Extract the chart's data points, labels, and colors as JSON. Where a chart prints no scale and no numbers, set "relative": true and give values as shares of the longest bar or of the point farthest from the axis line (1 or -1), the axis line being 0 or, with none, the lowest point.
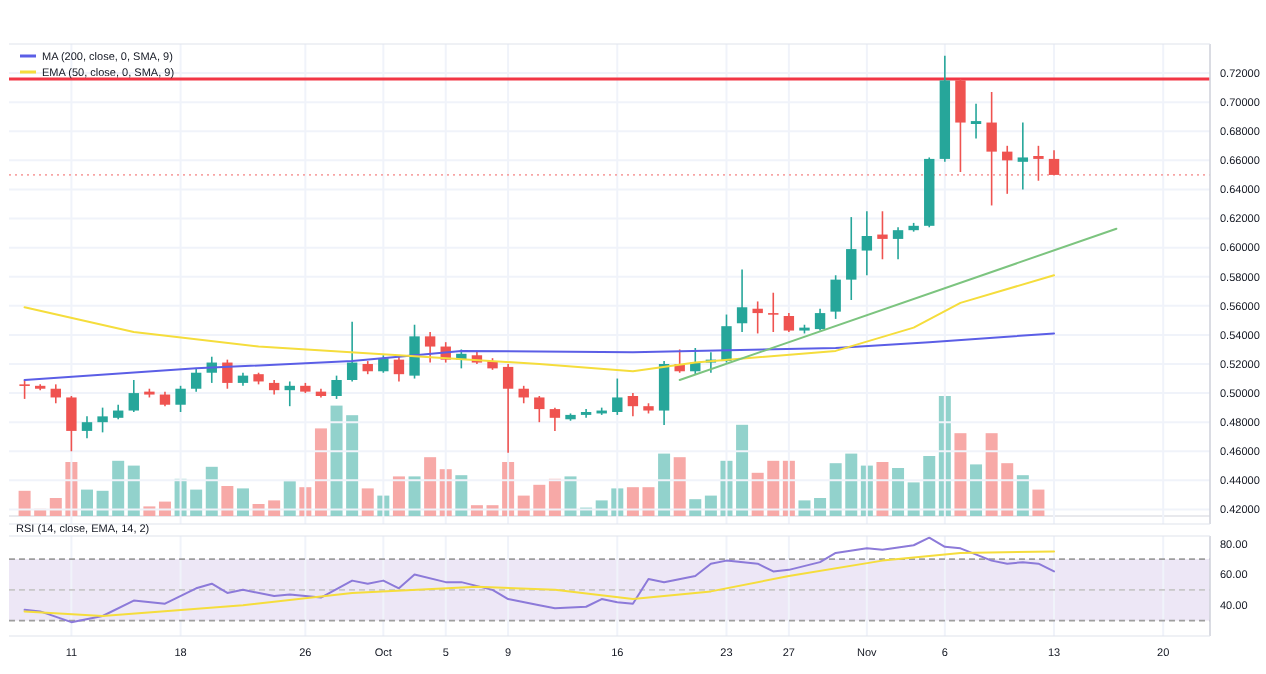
{
  "chart_data": [
    {
      "type": "candlestick",
      "tick_labels": "y",
      "grid": true,
      "legend": "top left",
      "xlim": [
        "--09-07",
        "--11-23"
      ],
      "ylim": [
        0.41,
        0.74
      ],
      "xticks": [
        {
          "value": "--09-11",
          "label": null
        },
        {
          "value": "--09-18",
          "label": null
        },
        {
          "value": "--09-26",
          "label": null
        },
        {
          "value": "--10-01",
          "label": null
        },
        {
          "value": "--10-05",
          "label": null
        },
        {
          "value": "--10-09",
          "label": null
        },
        {
          "value": "--10-16",
          "label": null
        },
        {
          "value": "--10-23",
          "label": null
        },
        {
          "value": "--10-27",
          "label": null
        },
        {
          "value": "--11-01",
          "label": null
        },
        {
          "value": "--11-06",
          "label": null
        },
        {
          "value": "--11-13",
          "label": null
        },
        {
          "value": "--11-20",
          "label": null
        }
      ],
      "yticks": [
        {
          "value": 0.42,
          "label": "0.42000"
        },
        {
          "value": 0.44,
          "label": "0.44000"
        },
        {
          "value": 0.46,
          "label": "0.46000"
        },
        {
          "value": 0.48,
          "label": "0.48000"
        },
        {
          "value": 0.5,
          "label": "0.50000"
        },
        {
          "value": 0.52,
          "label": "0.52000"
        },
        {
          "value": 0.54,
          "label": "0.54000"
        },
        {
          "value": 0.56,
          "label": "0.56000"
        },
        {
          "value": 0.58,
          "label": "0.58000"
        },
        {
          "value": 0.6,
          "label": "0.60000"
        },
        {
          "value": 0.62,
          "label": "0.62000"
        },
        {
          "value": 0.64,
          "label": "0.64000"
        },
        {
          "value": 0.66,
          "label": "0.66000"
        },
        {
          "value": 0.68,
          "label": "0.68000"
        },
        {
          "value": 0.7,
          "label": "0.70000"
        },
        {
          "value": 0.72,
          "label": "0.72000"
        }
      ],
      "x": [
        "--09-08",
        "--09-09",
        "--09-10",
        "--09-11",
        "--09-12",
        "--09-13",
        "--09-14",
        "--09-15",
        "--09-16",
        "--09-17",
        "--09-18",
        "--09-19",
        "--09-20",
        "--09-21",
        "--09-22",
        "--09-23",
        "--09-24",
        "--09-25",
        "--09-26",
        "--09-27",
        "--09-28",
        "--09-29",
        "--09-30",
        "--10-01",
        "--10-02",
        "--10-03",
        "--10-04",
        "--10-05",
        "--10-06",
        "--10-07",
        "--10-08",
        "--10-09",
        "--10-10",
        "--10-11",
        "--10-12",
        "--10-13",
        "--10-14",
        "--10-15",
        "--10-16",
        "--10-17",
        "--10-18",
        "--10-19",
        "--10-20",
        "--10-21",
        "--10-22",
        "--10-23",
        "--10-24",
        "--10-25",
        "--10-26",
        "--10-27",
        "--10-28",
        "--10-29",
        "--10-30",
        "--10-31",
        "--11-01",
        "--11-02",
        "--11-03",
        "--11-04",
        "--11-05",
        "--11-06",
        "--11-07",
        "--11-08",
        "--11-09",
        "--11-10",
        "--11-11",
        "--11-12",
        "--11-13"
      ],
      "ohlc": [
        [
          0.506,
          0.509,
          0.496,
          0.505
        ],
        [
          0.505,
          0.506,
          0.502,
          0.503
        ],
        [
          0.503,
          0.506,
          0.493,
          0.497
        ],
        [
          0.497,
          0.498,
          0.46,
          0.474
        ],
        [
          0.474,
          0.484,
          0.469,
          0.48
        ],
        [
          0.48,
          0.49,
          0.473,
          0.484
        ],
        [
          0.483,
          0.492,
          0.482,
          0.488
        ],
        [
          0.488,
          0.509,
          0.487,
          0.5
        ],
        [
          0.501,
          0.503,
          0.497,
          0.499
        ],
        [
          0.499,
          0.501,
          0.491,
          0.492
        ],
        [
          0.492,
          0.505,
          0.487,
          0.503
        ],
        [
          0.503,
          0.517,
          0.501,
          0.514
        ],
        [
          0.514,
          0.525,
          0.507,
          0.521
        ],
        [
          0.521,
          0.523,
          0.503,
          0.507
        ],
        [
          0.507,
          0.514,
          0.505,
          0.512
        ],
        [
          0.513,
          0.514,
          0.506,
          0.508
        ],
        [
          0.507,
          0.509,
          0.499,
          0.502
        ],
        [
          0.502,
          0.508,
          0.491,
          0.505
        ],
        [
          0.505,
          0.507,
          0.5,
          0.501
        ],
        [
          0.501,
          0.503,
          0.497,
          0.498
        ],
        [
          0.498,
          0.512,
          0.496,
          0.509
        ],
        [
          0.509,
          0.549,
          0.508,
          0.521
        ],
        [
          0.52,
          0.522,
          0.513,
          0.515
        ],
        [
          0.515,
          0.526,
          0.514,
          0.524
        ],
        [
          0.523,
          0.526,
          0.508,
          0.513
        ],
        [
          0.512,
          0.547,
          0.51,
          0.539
        ],
        [
          0.539,
          0.542,
          0.521,
          0.532
        ],
        [
          0.532,
          0.535,
          0.521,
          0.523
        ],
        [
          0.523,
          0.53,
          0.517,
          0.527
        ],
        [
          0.526,
          0.529,
          0.52,
          0.521
        ],
        [
          0.522,
          0.524,
          0.516,
          0.517
        ],
        [
          0.518,
          0.52,
          0.459,
          0.503
        ],
        [
          0.503,
          0.505,
          0.493,
          0.497
        ],
        [
          0.497,
          0.498,
          0.48,
          0.489
        ],
        [
          0.489,
          0.49,
          0.474,
          0.483
        ],
        [
          0.482,
          0.486,
          0.481,
          0.485
        ],
        [
          0.485,
          0.489,
          0.483,
          0.487
        ],
        [
          0.486,
          0.49,
          0.485,
          0.488
        ],
        [
          0.487,
          0.51,
          0.485,
          0.497
        ],
        [
          0.498,
          0.5,
          0.484,
          0.491
        ],
        [
          0.491,
          0.493,
          0.486,
          0.488
        ],
        [
          0.488,
          0.522,
          0.478,
          0.52
        ],
        [
          0.52,
          0.53,
          0.514,
          0.515
        ],
        [
          0.515,
          0.531,
          0.513,
          0.521
        ],
        [
          0.521,
          0.528,
          0.514,
          0.523
        ],
        [
          0.522,
          0.554,
          0.521,
          0.546
        ],
        [
          0.548,
          0.585,
          0.542,
          0.559
        ],
        [
          0.558,
          0.563,
          0.541,
          0.555
        ],
        [
          0.555,
          0.569,
          0.542,
          0.554
        ],
        [
          0.553,
          0.555,
          0.542,
          0.543
        ],
        [
          0.543,
          0.547,
          0.541,
          0.545
        ],
        [
          0.544,
          0.558,
          0.543,
          0.555
        ],
        [
          0.556,
          0.581,
          0.551,
          0.578
        ],
        [
          0.578,
          0.621,
          0.564,
          0.599
        ],
        [
          0.598,
          0.625,
          0.581,
          0.608
        ],
        [
          0.609,
          0.625,
          0.592,
          0.606
        ],
        [
          0.606,
          0.614,
          0.592,
          0.612
        ],
        [
          0.612,
          0.617,
          0.611,
          0.615
        ],
        [
          0.615,
          0.662,
          0.614,
          0.661
        ],
        [
          0.661,
          0.732,
          0.659,
          0.715
        ],
        [
          0.715,
          0.716,
          0.652,
          0.686
        ],
        [
          0.685,
          0.699,
          0.675,
          0.687
        ],
        [
          0.686,
          0.707,
          0.629,
          0.666
        ],
        [
          0.666,
          0.67,
          0.637,
          0.66
        ],
        [
          0.659,
          0.686,
          0.64,
          0.662
        ],
        [
          0.663,
          0.67,
          0.646,
          0.661
        ],
        [
          0.661,
          0.667,
          0.65,
          0.65
        ]
      ],
      "colors": [
        "#ef5350",
        "#ef5350",
        "#ef5350",
        "#ef5350",
        "#26a69a",
        "#26a69a",
        "#26a69a",
        "#26a69a",
        "#ef5350",
        "#ef5350",
        "#26a69a",
        "#26a69a",
        "#26a69a",
        "#ef5350",
        "#26a69a",
        "#ef5350",
        "#ef5350",
        "#26a69a",
        "#ef5350",
        "#ef5350",
        "#26a69a",
        "#26a69a",
        "#ef5350",
        "#26a69a",
        "#ef5350",
        "#26a69a",
        "#ef5350",
        "#ef5350",
        "#26a69a",
        "#ef5350",
        "#ef5350",
        "#ef5350",
        "#ef5350",
        "#ef5350",
        "#ef5350",
        "#26a69a",
        "#26a69a",
        "#26a69a",
        "#26a69a",
        "#ef5350",
        "#ef5350",
        "#26a69a",
        "#ef5350",
        "#26a69a",
        "#26a69a",
        "#26a69a",
        "#26a69a",
        "#ef5350",
        "#ef5350",
        "#ef5350",
        "#26a69a",
        "#26a69a",
        "#26a69a",
        "#26a69a",
        "#26a69a",
        "#ef5350",
        "#26a69a",
        "#26a69a",
        "#26a69a",
        "#26a69a",
        "#ef5350",
        "#26a69a",
        "#ef5350",
        "#ef5350",
        "#26a69a",
        "#ef5350",
        "#ef5350"
      ],
      "ref_lines": [
        {
          "axis": "y",
          "value": 0.716,
          "color": "#f23645",
          "line_style": "solid"
        },
        {
          "axis": "y",
          "value": 0.65,
          "color": "#f7a5a5",
          "line_style": "dotted"
        }
      ],
      "series": [
        {
          "type": "line",
          "name": "MA (200, close, 0, SMA, 9)",
          "color": "#5b5ee6",
          "x": [
            "--09-08",
            "--09-19",
            "--09-29",
            "--10-06",
            "--10-17",
            "--10-30",
            "--11-05",
            "--11-13"
          ],
          "values": [
            0.509,
            0.517,
            0.522,
            0.529,
            0.528,
            0.531,
            0.535,
            0.541
          ]
        },
        {
          "type": "line",
          "name": "EMA (50, close, 0, SMA, 9)",
          "color": "#f5dd3c",
          "x": [
            "--09-08",
            "--09-15",
            "--09-23",
            "--10-02",
            "--10-11",
            "--10-17",
            "--10-21",
            "--10-30",
            "--11-04",
            "--11-07",
            "--11-13"
          ],
          "values": [
            0.559,
            0.542,
            0.532,
            0.526,
            0.52,
            0.515,
            0.521,
            0.529,
            0.545,
            0.562,
            0.581
          ]
        },
        {
          "type": "line",
          "color": "#7cc47f",
          "x": [
            "--10-20",
            "--11-17"
          ],
          "values": [
            0.509,
            0.613
          ]
        }
      ]
    },
    {
      "type": "bar",
      "relative": true,
      "tick_labels": false,
      "xlim": [
        "--09-07",
        "--11-23"
      ],
      "x": [
        "--09-08",
        "--09-09",
        "--09-10",
        "--09-11",
        "--09-12",
        "--09-13",
        "--09-14",
        "--09-15",
        "--09-16",
        "--09-17",
        "--09-18",
        "--09-19",
        "--09-20",
        "--09-21",
        "--09-22",
        "--09-23",
        "--09-24",
        "--09-25",
        "--09-26",
        "--09-27",
        "--09-28",
        "--09-29",
        "--09-30",
        "--10-01",
        "--10-02",
        "--10-03",
        "--10-04",
        "--10-05",
        "--10-06",
        "--10-07",
        "--10-08",
        "--10-09",
        "--10-10",
        "--10-11",
        "--10-12",
        "--10-13",
        "--10-14",
        "--10-15",
        "--10-16",
        "--10-17",
        "--10-18",
        "--10-19",
        "--10-20",
        "--10-21",
        "--10-22",
        "--10-23",
        "--10-24",
        "--10-25",
        "--10-26",
        "--10-27",
        "--10-28",
        "--10-29",
        "--10-30",
        "--10-31",
        "--11-01",
        "--11-02",
        "--11-03",
        "--11-04",
        "--11-05",
        "--11-06",
        "--11-07",
        "--11-08",
        "--11-09",
        "--11-10",
        "--11-11",
        "--11-12"
      ],
      "values": [
        0.21,
        0.06,
        0.15,
        0.45,
        0.22,
        0.21,
        0.46,
        0.42,
        0.08,
        0.12,
        0.31,
        0.22,
        0.41,
        0.25,
        0.23,
        0.1,
        0.13,
        0.29,
        0.24,
        0.73,
        0.92,
        0.84,
        0.23,
        0.17,
        0.33,
        0.33,
        0.49,
        0.39,
        0.34,
        0.09,
        0.09,
        0.45,
        0.17,
        0.26,
        0.31,
        0.33,
        0.07,
        0.13,
        0.23,
        0.24,
        0.24,
        0.52,
        0.49,
        0.14,
        0.17,
        0.46,
        0.76,
        0.36,
        0.46,
        0.46,
        0.13,
        0.15,
        0.44,
        0.52,
        0.42,
        0.45,
        0.4,
        0.28,
        0.5,
        1,
        0.69,
        0.43,
        0.69,
        0.44,
        0.34,
        0.22
      ],
      "colors": [
        "#f7a9a7",
        "#f7a9a7",
        "#f7a9a7",
        "#f7a9a7",
        "#92d2cc",
        "#92d2cc",
        "#92d2cc",
        "#92d2cc",
        "#f7a9a7",
        "#f7a9a7",
        "#92d2cc",
        "#92d2cc",
        "#92d2cc",
        "#f7a9a7",
        "#92d2cc",
        "#f7a9a7",
        "#f7a9a7",
        "#92d2cc",
        "#f7a9a7",
        "#f7a9a7",
        "#92d2cc",
        "#92d2cc",
        "#f7a9a7",
        "#92d2cc",
        "#f7a9a7",
        "#92d2cc",
        "#f7a9a7",
        "#f7a9a7",
        "#92d2cc",
        "#f7a9a7",
        "#f7a9a7",
        "#f7a9a7",
        "#f7a9a7",
        "#f7a9a7",
        "#f7a9a7",
        "#92d2cc",
        "#92d2cc",
        "#92d2cc",
        "#92d2cc",
        "#f7a9a7",
        "#f7a9a7",
        "#92d2cc",
        "#f7a9a7",
        "#92d2cc",
        "#92d2cc",
        "#92d2cc",
        "#92d2cc",
        "#f7a9a7",
        "#f7a9a7",
        "#f7a9a7",
        "#92d2cc",
        "#92d2cc",
        "#92d2cc",
        "#92d2cc",
        "#92d2cc",
        "#f7a9a7",
        "#92d2cc",
        "#92d2cc",
        "#92d2cc",
        "#92d2cc",
        "#f7a9a7",
        "#92d2cc",
        "#f7a9a7",
        "#f7a9a7",
        "#92d2cc",
        "#f7a9a7"
      ]
    },
    {
      "type": "line",
      "title": "RSI (14, close, EMA, 14, 2)",
      "grid": "x",
      "xlim": [
        "--09-07",
        "--11-23"
      ],
      "ylim": [
        20,
        85
      ],
      "xticks": [
        {
          "value": "--09-11",
          "label": "11"
        },
        {
          "value": "--09-18",
          "label": "18"
        },
        {
          "value": "--09-26",
          "label": "26"
        },
        {
          "value": "--10-01",
          "label": "Oct"
        },
        {
          "value": "--10-05",
          "label": "5"
        },
        {
          "value": "--10-09",
          "label": "9"
        },
        {
          "value": "--10-16",
          "label": "16"
        },
        {
          "value": "--10-23",
          "label": "23"
        },
        {
          "value": "--10-27",
          "label": "27"
        },
        {
          "value": "--11-01",
          "label": "Nov"
        },
        {
          "value": "--11-06",
          "label": "6"
        },
        {
          "value": "--11-13",
          "label": "13"
        },
        {
          "value": "--11-20",
          "label": "20"
        }
      ],
      "yticks": [
        {
          "value": 40,
          "label": "40.00"
        },
        {
          "value": 60,
          "label": "60.00"
        },
        {
          "value": 80,
          "label": "80.00"
        }
      ],
      "bands": [
        {
          "axis": "y",
          "from": 30,
          "to": 70,
          "color": "#ede7f6"
        }
      ],
      "ref_lines": [
        {
          "axis": "y",
          "value": 70,
          "color": "#9e9e9e",
          "line_style": "dashed"
        },
        {
          "axis": "y",
          "value": 50,
          "color": "#c8c8c8",
          "line_style": "dashed"
        },
        {
          "axis": "y",
          "value": 30,
          "color": "#9e9e9e",
          "line_style": "dashed"
        }
      ],
      "series": [
        {
          "color": "#8c7ad9",
          "x": [
            "--09-08",
            "--09-09",
            "--09-11",
            "--09-13",
            "--09-15",
            "--09-17",
            "--09-19",
            "--09-20",
            "--09-21",
            "--09-22",
            "--09-24",
            "--09-25",
            "--09-27",
            "--09-29",
            "--09-30",
            "--10-01",
            "--10-02",
            "--10-03",
            "--10-05",
            "--10-06",
            "--10-08",
            "--10-09",
            "--10-11",
            "--10-12",
            "--10-14",
            "--10-15",
            "--10-16",
            "--10-17",
            "--10-18",
            "--10-19",
            "--10-21",
            "--10-22",
            "--10-23",
            "--10-25",
            "--10-26",
            "--10-27",
            "--10-29",
            "--10-30",
            "--11-01",
            "--11-02",
            "--11-04",
            "--11-05",
            "--11-06",
            "--11-07",
            "--11-09",
            "--11-10",
            "--11-11",
            "--11-12",
            "--11-13"
          ],
          "values": [
            37,
            36,
            29,
            33,
            43,
            41,
            51,
            54,
            48,
            50,
            46,
            47,
            45,
            56,
            54,
            56,
            51,
            60,
            55,
            55,
            50,
            44,
            40,
            38,
            39,
            44,
            42,
            41,
            57,
            55,
            59,
            67,
            69,
            67,
            62,
            63,
            68,
            74,
            77,
            76,
            79,
            84,
            78,
            77,
            69,
            67,
            68,
            67,
            62
          ]
        },
        {
          "color": "#f5dd3c",
          "x": [
            "--09-08",
            "--09-13",
            "--09-22",
            "--09-29",
            "--10-07",
            "--10-12",
            "--10-17",
            "--10-22",
            "--10-27",
            "--11-02",
            "--11-07",
            "--11-13"
          ],
          "values": [
            36,
            33,
            40,
            48,
            52,
            50,
            44,
            49,
            59,
            69,
            74,
            75
          ]
        }
      ]
    }
  ]
}
